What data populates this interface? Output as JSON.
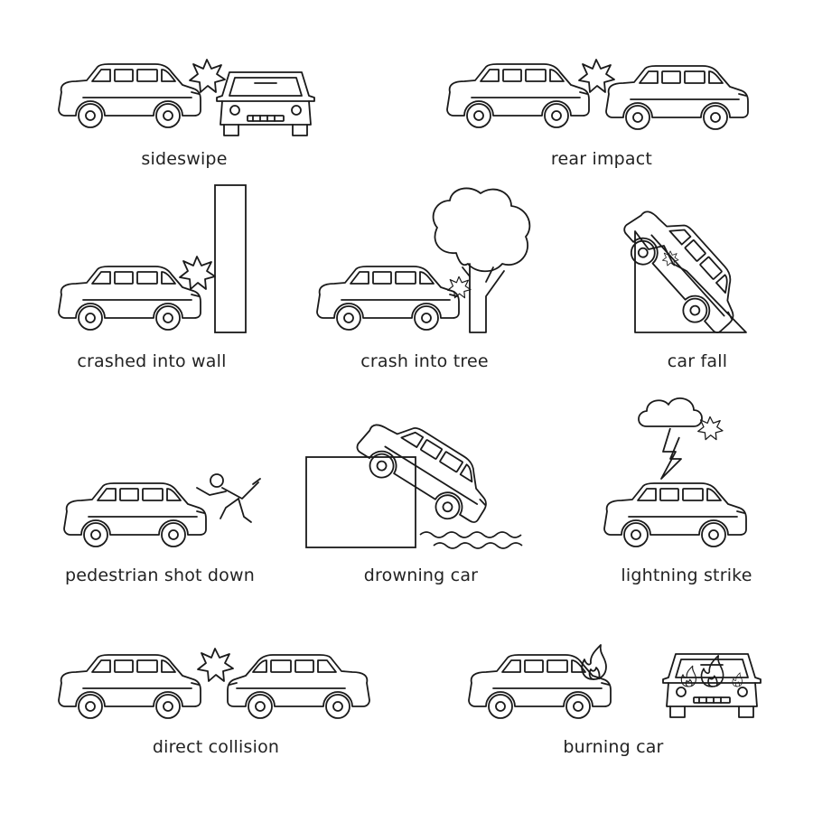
{
  "ink_color": "#1a1a1a",
  "background_color": "#ffffff",
  "icons": [
    {
      "id": "sideswipe",
      "caption": "sideswipe"
    },
    {
      "id": "rear-impact",
      "caption": "rear impact"
    },
    {
      "id": "crashed-into-wall",
      "caption": "crashed into wall"
    },
    {
      "id": "crash-into-tree",
      "caption": "crash into tree"
    },
    {
      "id": "car-fall",
      "caption": "car fall"
    },
    {
      "id": "pedestrian-shot-down",
      "caption": "pedestrian shot down"
    },
    {
      "id": "drowning-car",
      "caption": "drowning car"
    },
    {
      "id": "lightning-strike",
      "caption": "lightning strike"
    },
    {
      "id": "direct-collision",
      "caption": "direct collision"
    },
    {
      "id": "burning-car",
      "caption": "burning car"
    }
  ]
}
